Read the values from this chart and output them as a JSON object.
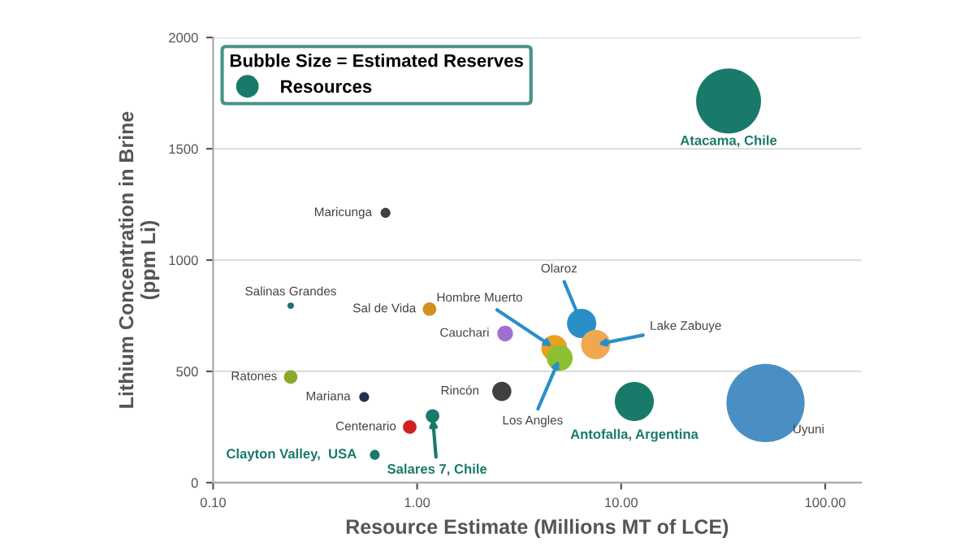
{
  "chart_data": {
    "type": "bubble",
    "xlabel": "Resource Estimate (Millions MT of LCE)",
    "ylabel": "Lithium Concentration in Brine\n(ppm Li)",
    "legend_title": "Bubble Size = Estimated Reserves",
    "legend": "top left",
    "grid": "y",
    "log": "x",
    "xlim": [
      0.1,
      150
    ],
    "xticks": [
      {
        "value": 0.1,
        "label": "0.10"
      },
      {
        "value": 1,
        "label": "1.00"
      },
      {
        "value": 10,
        "label": "10.00"
      },
      {
        "value": 100,
        "label": "100.00"
      }
    ],
    "ylim": [
      0,
      2000
    ],
    "yticks": [
      0,
      500,
      1000,
      1500,
      2000
    ],
    "series": [
      {
        "name": "Resources",
        "color": "#1a7a6a",
        "x": [
          33.6,
          11.6,
          1.19,
          0.62
        ],
        "values": [
          1715,
          365,
          300,
          125
        ],
        "sizes": [
          0.69,
          0.25,
          0.03,
          0.016
        ]
      },
      {
        "colors": [
          "#4a8fc4",
          "#2a8fc8",
          "#f0a850",
          "#e8a020",
          "#8cc030",
          "#a070d0",
          "#404040",
          "#d09020",
          "#404040",
          "#207070",
          "#8aa830",
          "#203050",
          "#d02020"
        ],
        "x": [
          51,
          6.4,
          7.5,
          4.7,
          5.0,
          2.7,
          2.6,
          1.15,
          0.7,
          0.24,
          0.24,
          0.55,
          0.92
        ],
        "values": [
          358,
          715,
          620,
          605,
          560,
          670,
          410,
          780,
          1212,
          795,
          475,
          385,
          250
        ],
        "sizes": [
          1,
          0.14,
          0.14,
          0.11,
          0.11,
          0.04,
          0.06,
          0.03,
          0.016,
          0.007,
          0.03,
          0.016,
          0.03
        ]
      }
    ],
    "annotations": [
      {
        "text": "Atacama, Chile",
        "x": 33.6,
        "y": 1715
      },
      {
        "text": "Antofalla, Argentina",
        "x": 11.6,
        "y": 365
      },
      {
        "text": "Salares 7, Chile",
        "x": 1.19,
        "y": 300
      },
      {
        "text": "Clayton Valley,  USA",
        "x": 0.62,
        "y": 125
      },
      {
        "text": "Uyuni",
        "x": 51,
        "y": 358
      },
      {
        "text": "Olaroz",
        "x": 6.4,
        "y": 715
      },
      {
        "text": "Lake Zabuye",
        "x": 7.5,
        "y": 620
      },
      {
        "text": "Hombre Muerto",
        "x": 4.7,
        "y": 605
      },
      {
        "text": "Los Angles",
        "x": 5.0,
        "y": 560
      },
      {
        "text": "Cauchari",
        "x": 2.7,
        "y": 670
      },
      {
        "text": "Rincón",
        "x": 2.6,
        "y": 410
      },
      {
        "text": "Sal de Vida",
        "x": 1.15,
        "y": 780
      },
      {
        "text": "Maricunga",
        "x": 0.7,
        "y": 1212
      },
      {
        "text": "Salinas Grandes",
        "x": 0.24,
        "y": 795
      },
      {
        "text": "Ratones",
        "x": 0.24,
        "y": 475
      },
      {
        "text": "Mariana",
        "x": 0.55,
        "y": 385
      },
      {
        "text": "Centenario",
        "x": 0.92,
        "y": 250
      }
    ]
  }
}
